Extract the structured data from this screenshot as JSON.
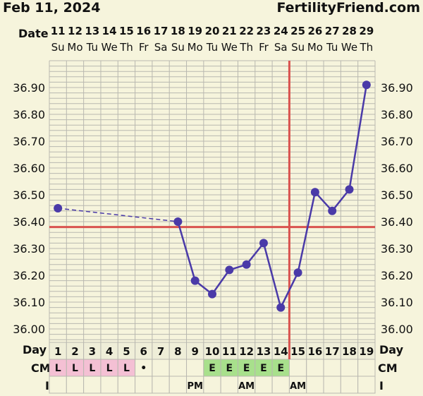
{
  "header": {
    "date": "Feb 11, 2024",
    "site": "FertilityFriend.com"
  },
  "labels": {
    "date": "Date",
    "day": "Day",
    "cm": "CM",
    "i": "I"
  },
  "chart_data": {
    "type": "line",
    "dates": [
      "11",
      "12",
      "13",
      "14",
      "15",
      "16",
      "17",
      "18",
      "19",
      "20",
      "21",
      "22",
      "23",
      "24",
      "25",
      "26",
      "27",
      "28",
      "29"
    ],
    "weekdays": [
      "Su",
      "Mo",
      "Tu",
      "We",
      "Th",
      "Fr",
      "Sa",
      "Su",
      "Mo",
      "Tu",
      "We",
      "Th",
      "Fr",
      "Sa",
      "Su",
      "Mo",
      "Tu",
      "We",
      "Th"
    ],
    "cycle_days": [
      "1",
      "2",
      "3",
      "4",
      "5",
      "6",
      "7",
      "8",
      "9",
      "10",
      "11",
      "12",
      "13",
      "14",
      "15",
      "16",
      "17",
      "18",
      "19"
    ],
    "temperatures": [
      36.45,
      null,
      null,
      null,
      null,
      null,
      null,
      36.4,
      36.18,
      36.13,
      36.22,
      36.24,
      36.32,
      36.08,
      36.21,
      36.51,
      36.44,
      36.52,
      36.91
    ],
    "ylim": [
      35.95,
      37.0
    ],
    "yticks": [
      "36.00",
      "36.10",
      "36.20",
      "36.30",
      "36.40",
      "36.50",
      "36.60",
      "36.70",
      "36.80",
      "36.90"
    ],
    "coverline": 36.38,
    "ovulation_day": 15,
    "grid": true,
    "cm": [
      "L",
      "L",
      "L",
      "L",
      "L",
      "•",
      "",
      "",
      "",
      "E",
      "E",
      "E",
      "E",
      "E",
      "",
      "",
      "",
      "",
      ""
    ],
    "cm_colors": [
      "#f4c0d4",
      "#f4c0d4",
      "#f4c0d4",
      "#f4c0d4",
      "#f4c0d4",
      "",
      "",
      "",
      "",
      "#a8e08c",
      "#a8e08c",
      "#a8e08c",
      "#a8e08c",
      "#a8e08c",
      "",
      "",
      "",
      "",
      ""
    ],
    "intercourse": [
      "",
      "",
      "",
      "",
      "",
      "",
      "",
      "",
      "PM",
      "",
      "",
      "AM",
      "",
      "",
      "AM",
      "",
      "",
      "",
      ""
    ],
    "colors": {
      "line": "#4a3aa8",
      "coverline": "#d9534f",
      "grid": "#b9b8b0",
      "background": "#f6f4dc"
    }
  }
}
